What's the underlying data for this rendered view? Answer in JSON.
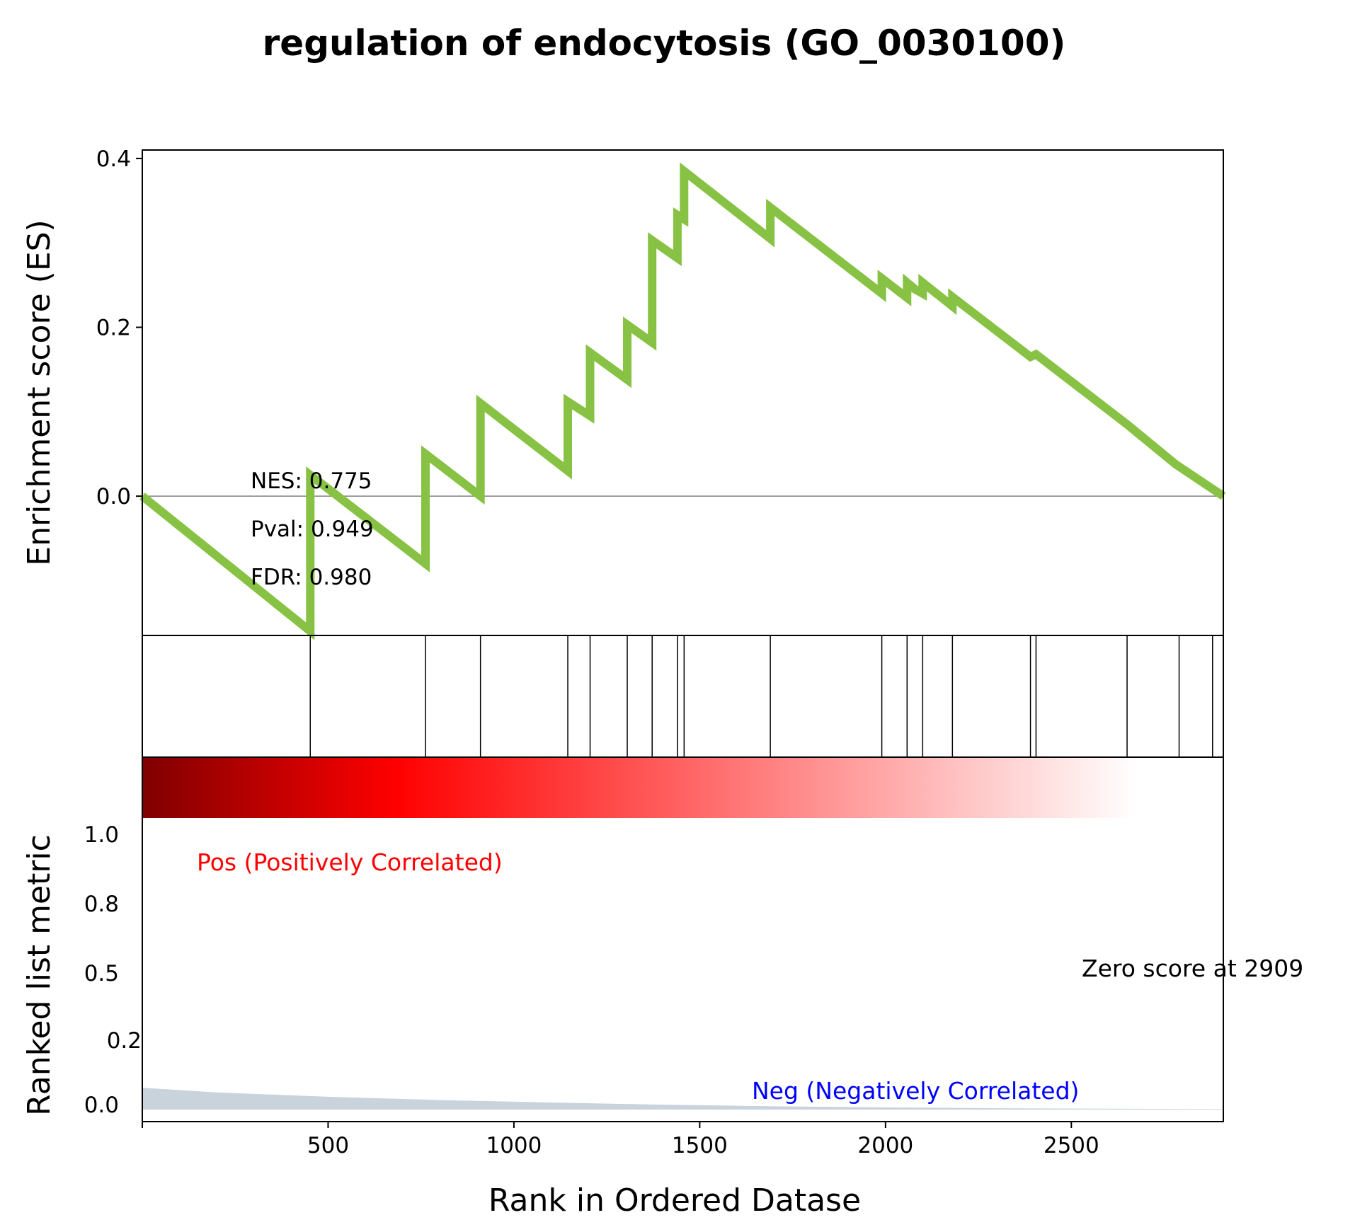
{
  "chart_data": {
    "type": "line",
    "title": "regulation of endocytosis (GO_0030100)",
    "colors": {
      "es_line": "#88c244",
      "hits": "#000000",
      "zero_line": "#808080",
      "metric_fill": "#c9d3dc",
      "pos_label": "#ff0000",
      "neg_label": "#0000ff",
      "gradient_stops": [
        "#800000",
        "#ff0000",
        "#ffffff"
      ]
    },
    "es_panel": {
      "ylabel": "Enrichment score (ES)",
      "ylim": [
        -0.165,
        0.41
      ],
      "yticks": [
        0.0,
        0.2,
        0.4
      ],
      "ytick_labels": [
        "0.0",
        "0.2",
        "0.4"
      ],
      "stats": [
        "NES: 0.775",
        "Pval: 0.949",
        "FDR: 0.980"
      ],
      "points": [
        [
          0,
          0.0
        ],
        [
          452,
          -0.16
        ],
        [
          452,
          0.025
        ],
        [
          762,
          -0.08
        ],
        [
          762,
          0.05
        ],
        [
          910,
          0.0
        ],
        [
          910,
          0.11
        ],
        [
          1145,
          0.03
        ],
        [
          1145,
          0.112
        ],
        [
          1205,
          0.095
        ],
        [
          1205,
          0.17
        ],
        [
          1305,
          0.138
        ],
        [
          1305,
          0.203
        ],
        [
          1372,
          0.182
        ],
        [
          1372,
          0.303
        ],
        [
          1440,
          0.282
        ],
        [
          1440,
          0.333
        ],
        [
          1458,
          0.328
        ],
        [
          1458,
          0.385
        ],
        [
          1690,
          0.305
        ],
        [
          1690,
          0.342
        ],
        [
          1990,
          0.24
        ],
        [
          1990,
          0.258
        ],
        [
          2058,
          0.235
        ],
        [
          2058,
          0.253
        ],
        [
          2080,
          0.245
        ],
        [
          2100,
          0.24
        ],
        [
          2100,
          0.253
        ],
        [
          2180,
          0.225
        ],
        [
          2180,
          0.236
        ],
        [
          2390,
          0.165
        ],
        [
          2405,
          0.168
        ],
        [
          2650,
          0.085
        ],
        [
          2780,
          0.038
        ],
        [
          2909,
          0.0
        ]
      ]
    },
    "hits": [
      452,
      762,
      910,
      1145,
      1205,
      1305,
      1372,
      1440,
      1458,
      1690,
      1990,
      2058,
      2100,
      2180,
      2390,
      2405,
      2650,
      2790,
      2880
    ],
    "metric_panel": {
      "ylabel": "Ranked list metric",
      "xlabel": "Rank in Ordered Datase",
      "ytick_labels": [
        "1.0",
        "0.8",
        "0.5",
        "0.2",
        "0.0"
      ],
      "pos_label": "Pos (Positively Correlated)",
      "neg_label": "Neg (Negatively Correlated)",
      "zero_score": "Zero score at 2909",
      "metric_points": [
        [
          0,
          0.08
        ],
        [
          200,
          0.063
        ],
        [
          500,
          0.047
        ],
        [
          800,
          0.035
        ],
        [
          1100,
          0.026
        ],
        [
          1400,
          0.018
        ],
        [
          1700,
          0.012
        ],
        [
          2000,
          0.008
        ],
        [
          2300,
          0.005
        ],
        [
          2600,
          0.003
        ],
        [
          2909,
          0.002
        ]
      ],
      "metric_ymax": 1.0
    },
    "x": {
      "xlim": [
        0,
        2909
      ],
      "xticks": [
        500,
        1000,
        1500,
        2000,
        2500
      ],
      "xtick_labels": [
        "500",
        "1000",
        "1500",
        "2000",
        "2500"
      ]
    }
  }
}
